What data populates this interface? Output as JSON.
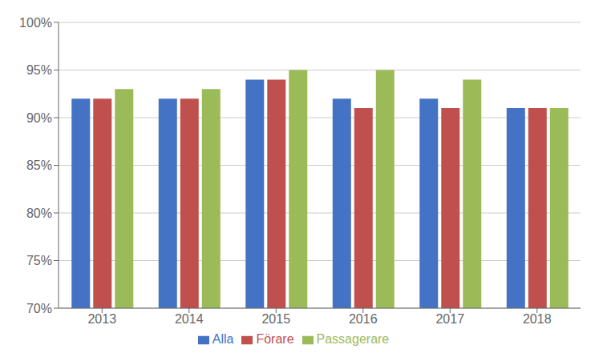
{
  "chart_data": {
    "type": "bar",
    "categories": [
      "2013",
      "2014",
      "2015",
      "2016",
      "2017",
      "2018"
    ],
    "series": [
      {
        "name": "Alla",
        "color": "#4472C4",
        "values": [
          92,
          92,
          94,
          92,
          92,
          91
        ]
      },
      {
        "name": "Förare",
        "color": "#C0504D",
        "values": [
          92,
          92,
          94,
          91,
          91,
          91
        ]
      },
      {
        "name": "Passagerare",
        "color": "#9BBB59",
        "values": [
          93,
          93,
          95,
          95,
          94,
          91
        ]
      }
    ],
    "ylim": [
      70,
      100
    ],
    "yticks": [
      {
        "value": 70,
        "label": "70%"
      },
      {
        "value": 75,
        "label": "75%"
      },
      {
        "value": 80,
        "label": "80%"
      },
      {
        "value": 85,
        "label": "85%"
      },
      {
        "value": 90,
        "label": "90%"
      },
      {
        "value": 95,
        "label": "95%"
      },
      {
        "value": 100,
        "label": "100%"
      }
    ],
    "grid": true,
    "legend": "bottom"
  }
}
